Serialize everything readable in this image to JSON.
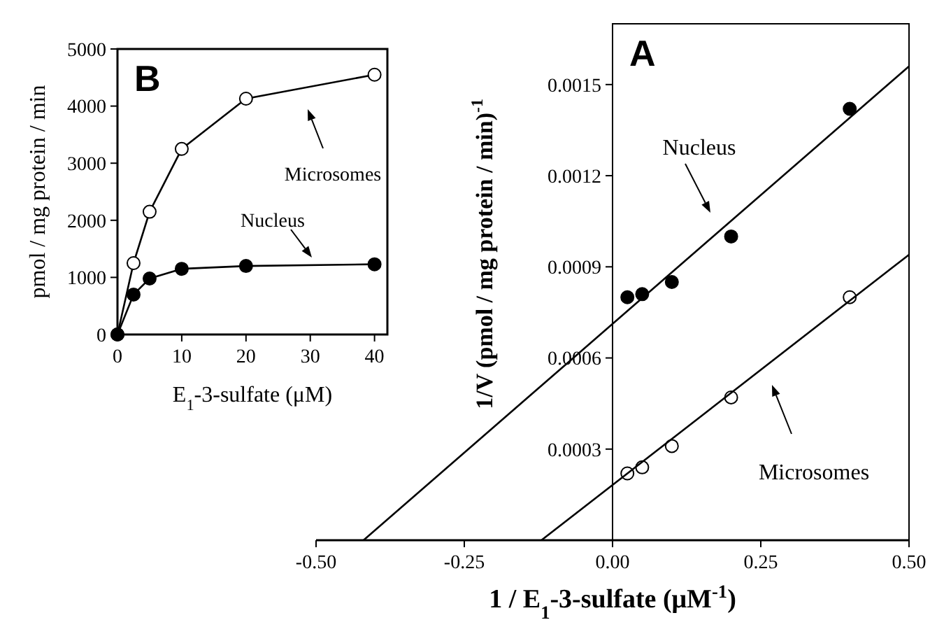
{
  "chart_data": [
    {
      "type": "line",
      "title": "B",
      "xlabel": "E$_{1}$-3-sulfate (μM)",
      "ylabel": "pmol / mg protein / min",
      "xlim": [
        0,
        42
      ],
      "ylim": [
        0,
        5000
      ],
      "xticks": [
        0,
        10,
        20,
        30,
        40
      ],
      "yticks": [
        0,
        1000,
        2000,
        3000,
        4000,
        5000
      ],
      "x": [
        0,
        2.5,
        5,
        10,
        20,
        40
      ],
      "marker": "circle",
      "grid": false,
      "series": [
        {
          "color": "#ffffff",
          "values": [
            0,
            1250,
            2150,
            3250,
            4130,
            4550
          ]
        },
        {
          "color": "#000000",
          "values": [
            0,
            700,
            980,
            1150,
            1200,
            1230
          ]
        }
      ],
      "annotations": [
        "Microsomes",
        "Nucleus"
      ]
    },
    {
      "type": "scatter",
      "title": "A",
      "xlabel": "1 / E$_{1}$-3-sulfate (μM$^{-1}$)",
      "ylabel": "1/V (pmol / mg protein / min)$^{-1}$",
      "xlim": [
        -0.5,
        0.5
      ],
      "ylim": [
        0,
        0.0017
      ],
      "xticks": [
        {
          "value": -0.5,
          "label": "-0.50"
        },
        {
          "value": -0.25,
          "label": "-0.25"
        },
        {
          "value": 0,
          "label": "0.00"
        },
        {
          "value": 0.25,
          "label": "0.25"
        },
        {
          "value": 0.5,
          "label": "0.50"
        }
      ],
      "yticks": [
        0.0003,
        0.0006,
        0.0009,
        0.0012,
        0.0015
      ],
      "x": [
        0.025,
        0.05,
        0.1,
        0.2,
        0.4
      ],
      "grid": false,
      "series": [
        {
          "color": "#000000",
          "marker": "circle",
          "values": [
            0.0008,
            0.00081,
            0.00085,
            0.001,
            0.00142
          ]
        },
        {
          "color": "#ffffff",
          "marker": "circle",
          "values": [
            0.00022,
            0.00024,
            0.00031,
            0.00047,
            0.0008
          ]
        },
        {
          "type": "line",
          "color": "#000000",
          "x": [
            -0.42,
            0.5
          ],
          "values": [
            0,
            0.00156
          ]
        },
        {
          "type": "line",
          "color": "#000000",
          "x": [
            -0.12,
            0.5
          ],
          "values": [
            0,
            0.00094
          ]
        }
      ],
      "annotations": [
        "Nucleus",
        "Microsomes"
      ]
    }
  ]
}
